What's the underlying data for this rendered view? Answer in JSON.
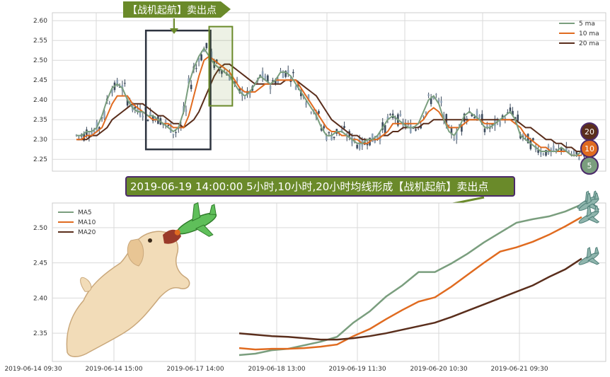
{
  "annotations": {
    "top_label": "【战机起航】卖出点",
    "banner": "2019-06-19 14:00:00 5小时,10小时,20小时均线形成【战机起航】卖出点"
  },
  "badges": [
    {
      "text": "20",
      "color": "#5a2e1c"
    },
    {
      "text": "10",
      "color": "#e06b20"
    },
    {
      "text": "5",
      "color": "#7a9e7e"
    }
  ],
  "colors": {
    "ma5": "#7a9e7e",
    "ma10": "#e06b20",
    "ma20": "#5a2e1c",
    "candle": "#3b4a5c",
    "annotation_green": "#6a8a2a",
    "zone_dark": "#2e3440",
    "banner_border": "#4b2a6a",
    "grid": "#d9d9d9"
  },
  "icons": [
    "airplane-icon",
    "dog-illustration",
    "arrow-icon"
  ],
  "chart_data": [
    {
      "type": "line",
      "title": "",
      "chart_kind": "candlestick with moving averages",
      "ylim": [
        2.22,
        2.62
      ],
      "yticks": [
        "2.25",
        "2.30",
        "2.35",
        "2.40",
        "2.45",
        "2.50",
        "2.55",
        "2.60"
      ],
      "grid": true,
      "legend_position": "top-right",
      "legend": [
        "5 ma",
        "10 ma",
        "20 ma"
      ],
      "x_count": 100,
      "ma5": [
        2.31,
        2.31,
        2.32,
        2.32,
        2.33,
        2.36,
        2.4,
        2.43,
        2.44,
        2.43,
        2.4,
        2.38,
        2.37,
        2.37,
        2.36,
        2.36,
        2.35,
        2.34,
        2.33,
        2.32,
        2.33,
        2.37,
        2.44,
        2.48,
        2.51,
        2.53,
        2.51,
        2.49,
        2.48,
        2.47,
        2.46,
        2.44,
        2.42,
        2.41,
        2.42,
        2.44,
        2.46,
        2.45,
        2.44,
        2.45,
        2.47,
        2.47,
        2.46,
        2.44,
        2.42,
        2.4,
        2.38,
        2.36,
        2.33,
        2.31,
        2.31,
        2.32,
        2.32,
        2.31,
        2.3,
        2.29,
        2.29,
        2.3,
        2.3,
        2.31,
        2.33,
        2.35,
        2.36,
        2.35,
        2.34,
        2.33,
        2.33,
        2.34,
        2.37,
        2.4,
        2.41,
        2.39,
        2.35,
        2.32,
        2.31,
        2.33,
        2.36,
        2.37,
        2.36,
        2.35,
        2.33,
        2.33,
        2.34,
        2.35,
        2.36,
        2.37,
        2.35,
        2.31,
        2.3,
        2.29,
        2.28,
        2.27,
        2.27,
        2.27,
        2.27,
        2.28,
        2.27,
        2.26,
        2.26,
        2.27
      ],
      "ma10": [
        2.3,
        2.3,
        2.31,
        2.31,
        2.32,
        2.33,
        2.36,
        2.39,
        2.41,
        2.41,
        2.41,
        2.39,
        2.38,
        2.37,
        2.36,
        2.35,
        2.35,
        2.34,
        2.34,
        2.33,
        2.33,
        2.33,
        2.36,
        2.41,
        2.46,
        2.5,
        2.51,
        2.5,
        2.49,
        2.48,
        2.47,
        2.45,
        2.43,
        2.42,
        2.42,
        2.42,
        2.43,
        2.44,
        2.44,
        2.45,
        2.45,
        2.45,
        2.45,
        2.45,
        2.43,
        2.41,
        2.39,
        2.37,
        2.35,
        2.33,
        2.32,
        2.32,
        2.31,
        2.31,
        2.3,
        2.3,
        2.29,
        2.29,
        2.3,
        2.3,
        2.31,
        2.32,
        2.34,
        2.34,
        2.34,
        2.34,
        2.34,
        2.34,
        2.35,
        2.37,
        2.38,
        2.37,
        2.35,
        2.33,
        2.33,
        2.33,
        2.34,
        2.35,
        2.35,
        2.35,
        2.34,
        2.34,
        2.34,
        2.35,
        2.35,
        2.35,
        2.34,
        2.33,
        2.31,
        2.3,
        2.29,
        2.28,
        2.28,
        2.27,
        2.27,
        2.27,
        2.27,
        2.26,
        2.26,
        2.26
      ],
      "ma20": [
        2.3,
        2.3,
        2.3,
        2.31,
        2.31,
        2.32,
        2.33,
        2.35,
        2.36,
        2.37,
        2.38,
        2.39,
        2.39,
        2.39,
        2.38,
        2.37,
        2.36,
        2.36,
        2.35,
        2.34,
        2.34,
        2.33,
        2.34,
        2.35,
        2.37,
        2.4,
        2.43,
        2.46,
        2.48,
        2.49,
        2.49,
        2.48,
        2.47,
        2.46,
        2.45,
        2.44,
        2.44,
        2.44,
        2.44,
        2.44,
        2.44,
        2.45,
        2.45,
        2.45,
        2.44,
        2.43,
        2.42,
        2.41,
        2.39,
        2.37,
        2.35,
        2.34,
        2.33,
        2.32,
        2.31,
        2.31,
        2.3,
        2.3,
        2.3,
        2.3,
        2.31,
        2.31,
        2.32,
        2.32,
        2.33,
        2.33,
        2.33,
        2.33,
        2.34,
        2.34,
        2.35,
        2.35,
        2.35,
        2.35,
        2.35,
        2.35,
        2.35,
        2.35,
        2.35,
        2.35,
        2.35,
        2.35,
        2.35,
        2.35,
        2.35,
        2.35,
        2.35,
        2.34,
        2.33,
        2.33,
        2.32,
        2.31,
        2.3,
        2.3,
        2.29,
        2.29,
        2.28,
        2.28,
        2.27,
        2.27
      ],
      "highlight_zones": [
        [
          15,
          26
        ],
        [
          26,
          30
        ]
      ]
    },
    {
      "type": "line",
      "title": "",
      "ylim": [
        2.31,
        2.535
      ],
      "yticks": [
        "2.35",
        "2.40",
        "2.45",
        "2.50"
      ],
      "xticks": [
        "2019-06-14 09:30",
        "2019-06-14 15:00",
        "2019-06-17 14:00",
        "2019-06-18 13:00",
        "2019-06-19 11:30",
        "2019-06-20 10:30",
        "2019-06-21 09:30"
      ],
      "grid": true,
      "legend_position": "top-left",
      "series": [
        {
          "name": "MA5",
          "values": [
            2.319,
            2.321,
            2.326,
            2.328,
            2.333,
            2.338,
            2.345,
            2.365,
            2.381,
            2.402,
            2.418,
            2.437,
            2.437,
            2.449,
            2.463,
            2.479,
            2.493,
            2.507,
            2.512,
            2.516,
            2.523,
            2.533
          ]
        },
        {
          "name": "MA10",
          "values": [
            2.329,
            2.327,
            2.328,
            2.328,
            2.329,
            2.331,
            2.334,
            2.346,
            2.356,
            2.37,
            2.383,
            2.395,
            2.401,
            2.416,
            2.433,
            2.45,
            2.466,
            2.472,
            2.48,
            2.49,
            2.502,
            2.515
          ]
        },
        {
          "name": "MA20",
          "values": [
            2.35,
            2.348,
            2.346,
            2.345,
            2.343,
            2.341,
            2.341,
            2.343,
            2.346,
            2.35,
            2.355,
            2.36,
            2.365,
            2.373,
            2.382,
            2.391,
            2.4,
            2.409,
            2.418,
            2.43,
            2.441,
            2.456
          ]
        }
      ]
    }
  ]
}
